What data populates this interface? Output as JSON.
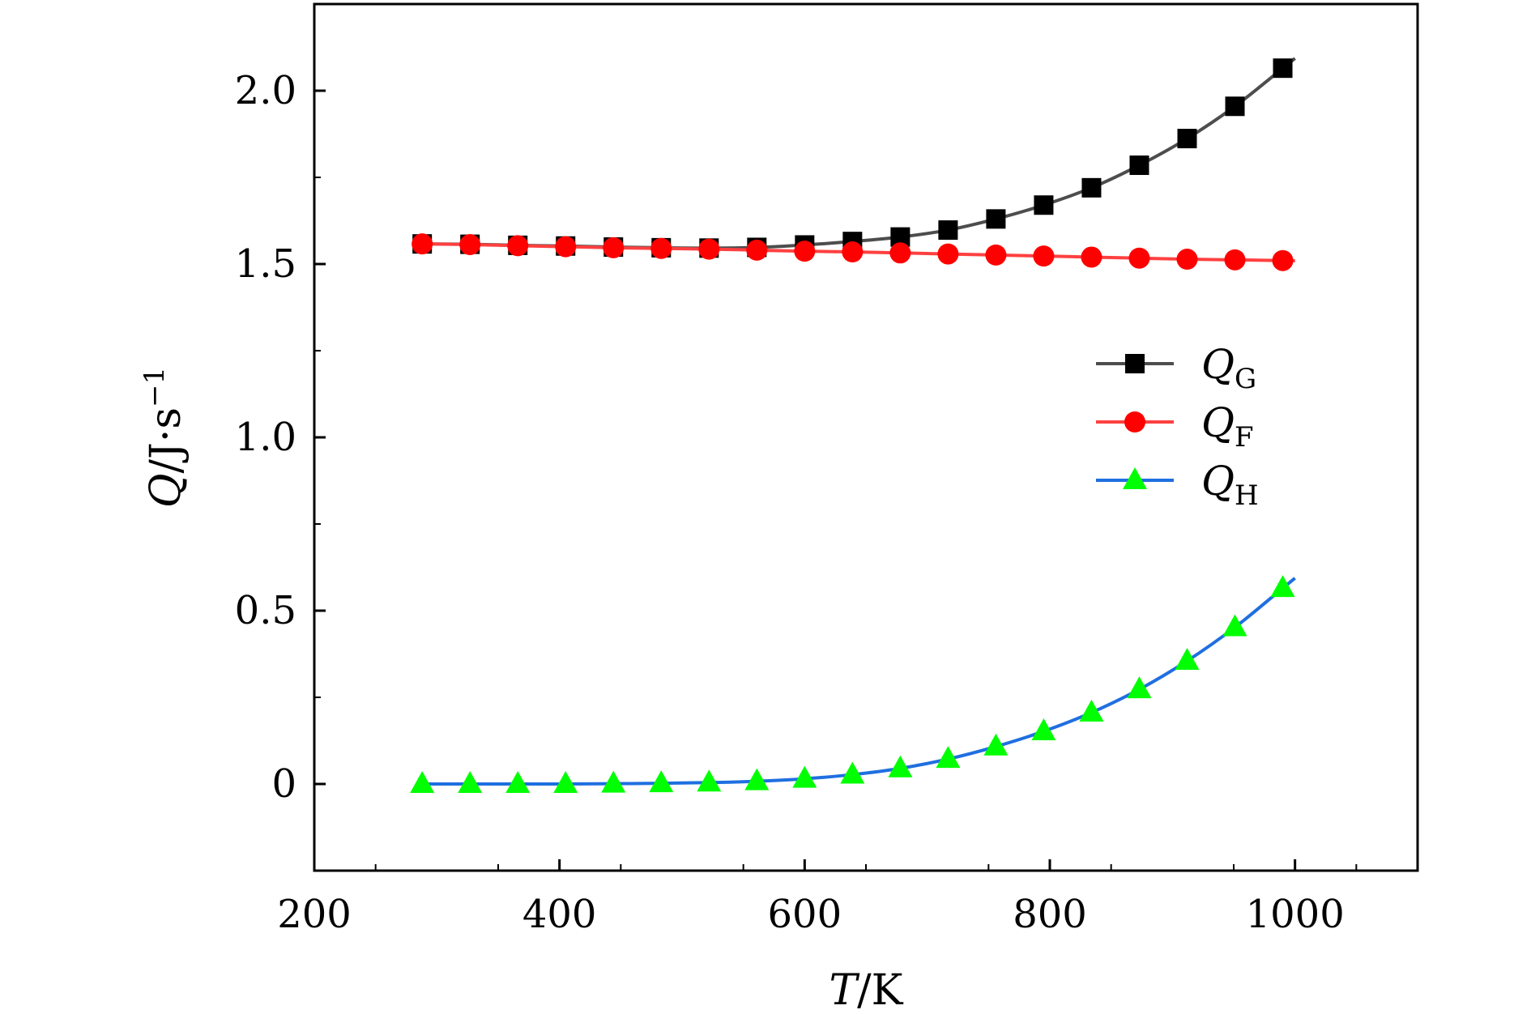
{
  "chart_data": {
    "type": "line",
    "title": "",
    "xlabel": {
      "main": "T",
      "unit": "/K"
    },
    "ylabel": {
      "main": "Q",
      "unit": "/J·s",
      "exp": "−1"
    },
    "xlim": [
      200,
      1100
    ],
    "ylim": [
      -0.25,
      2.25
    ],
    "grid": false,
    "legend_position": "right",
    "x_ticks": [
      {
        "value": 200,
        "label": "200"
      },
      {
        "value": 400,
        "label": "400"
      },
      {
        "value": 600,
        "label": "600"
      },
      {
        "value": 800,
        "label": "800"
      },
      {
        "value": 1000,
        "label": "1000"
      }
    ],
    "y_ticks": [
      {
        "value": 0,
        "label": "0"
      },
      {
        "value": 0.5,
        "label": "0.5"
      },
      {
        "value": 1.0,
        "label": "1.0"
      },
      {
        "value": 1.5,
        "label": "1.5"
      },
      {
        "value": 2.0,
        "label": "2.0"
      }
    ],
    "x": [
      288,
      327,
      366,
      405,
      444,
      483,
      522,
      561,
      600,
      639,
      678,
      717,
      756,
      795,
      834,
      873,
      912,
      951,
      990
    ],
    "series": [
      {
        "name": "Q",
        "sub": "G",
        "line_color": "#4d4d4d",
        "marker_color": "#000000",
        "marker": "square",
        "values": [
          1.558,
          1.557,
          1.554,
          1.552,
          1.549,
          1.547,
          1.546,
          1.548,
          1.555,
          1.565,
          1.578,
          1.598,
          1.63,
          1.67,
          1.72,
          1.785,
          1.862,
          1.955,
          2.065
        ]
      },
      {
        "name": "Q",
        "sub": "F",
        "line_color": "#ff4040",
        "marker_color": "#ff0000",
        "marker": "circle",
        "values": [
          1.558,
          1.556,
          1.553,
          1.55,
          1.547,
          1.545,
          1.543,
          1.54,
          1.537,
          1.535,
          1.532,
          1.529,
          1.526,
          1.523,
          1.52,
          1.517,
          1.514,
          1.512,
          1.51
        ]
      },
      {
        "name": "Q",
        "sub": "H",
        "line_color": "#1f6fe0",
        "marker_color": "#00ff00",
        "marker": "triangle",
        "values": [
          0.0,
          0.0,
          0.0,
          0.0,
          0.001,
          0.002,
          0.004,
          0.008,
          0.015,
          0.027,
          0.045,
          0.072,
          0.108,
          0.152,
          0.206,
          0.273,
          0.355,
          0.452,
          0.565
        ]
      }
    ]
  }
}
